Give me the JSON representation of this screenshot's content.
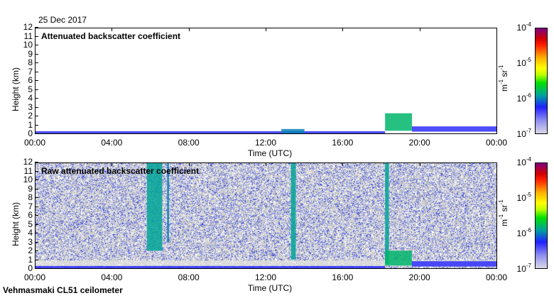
{
  "header": {
    "date": "25 Dec 2017"
  },
  "footer": {
    "instrument": "Vehmasmaki CL51 ceilometer"
  },
  "colors": {
    "noise_gray": "#c8c8c8",
    "speckle_blue": "#3040e0",
    "cloud_green": "#20c040"
  },
  "chart_data": [
    {
      "type": "heatmap",
      "title": "Attenuated backscatter coefficient",
      "xlabel": "Time (UTC)",
      "ylabel": "Height (km)",
      "xlim": [
        0,
        24
      ],
      "ylim": [
        0,
        12
      ],
      "xticks": [
        "00:00",
        "04:00",
        "08:00",
        "12:00",
        "16:00",
        "20:00",
        "00:00"
      ],
      "yticks": [
        "0",
        "1",
        "2",
        "3",
        "4",
        "5",
        "6",
        "7",
        "8",
        "9",
        "10",
        "11",
        "12"
      ],
      "colorbar": {
        "label_base": "m",
        "label_exp1": "-1",
        "label_mid": " sr",
        "label_exp2": "-1",
        "ticks": [
          "-7",
          "-6",
          "-5",
          "-4"
        ],
        "tick_base": "10",
        "scale": "log"
      },
      "noise_background": false,
      "features": [
        {
          "name": "surface-layer",
          "t0": 0,
          "t1": 18.2,
          "h0": 0,
          "h1": 0.25,
          "log10": -6.3
        },
        {
          "name": "aerosol-near-13h",
          "t0": 12.8,
          "t1": 14.0,
          "h0": 0,
          "h1": 0.5,
          "log10": -6.0
        },
        {
          "name": "low-cloud",
          "t0": 18.2,
          "t1": 19.6,
          "h0": 0.3,
          "h1": 2.3,
          "log10": -5.8
        },
        {
          "name": "boundary-layer-late",
          "t0": 19.6,
          "t1": 24,
          "h0": 0.2,
          "h1": 0.8,
          "log10": -6.3
        }
      ]
    },
    {
      "type": "heatmap",
      "title": "Raw attenuated backscatter coefficient",
      "xlabel": "Time (UTC)",
      "ylabel": "Height (km)",
      "xlim": [
        0,
        24
      ],
      "ylim": [
        0,
        12
      ],
      "xticks": [
        "00:00",
        "04:00",
        "08:00",
        "12:00",
        "16:00",
        "20:00",
        "00:00"
      ],
      "yticks": [
        "0",
        "1",
        "2",
        "3",
        "4",
        "5",
        "6",
        "7",
        "8",
        "9",
        "10",
        "11",
        "12"
      ],
      "colorbar": {
        "label_base": "m",
        "label_exp1": "-1",
        "label_mid": " sr",
        "label_exp2": "-1",
        "ticks": [
          "-7",
          "-6",
          "-5",
          "-4"
        ],
        "tick_base": "10",
        "scale": "log"
      },
      "noise_background": true,
      "features": [
        {
          "name": "surface-layer",
          "t0": 0,
          "t1": 18.2,
          "h0": 0,
          "h1": 0.25,
          "log10": -6.3
        },
        {
          "name": "cloud-column-6h",
          "t0": 5.8,
          "t1": 6.6,
          "h0": 2.0,
          "h1": 12,
          "log10": -5.9
        },
        {
          "name": "cloud-column-6h-narrow",
          "t0": 6.85,
          "t1": 6.95,
          "h0": 3.0,
          "h1": 12,
          "log10": -6.0
        },
        {
          "name": "cloud-column-13h",
          "t0": 13.3,
          "t1": 13.55,
          "h0": 1.0,
          "h1": 12,
          "log10": -5.9
        },
        {
          "name": "cloud-column-18h",
          "t0": 18.2,
          "t1": 18.4,
          "h0": 0.5,
          "h1": 12,
          "log10": -5.9
        },
        {
          "name": "low-cloud",
          "t0": 18.2,
          "t1": 19.6,
          "h0": 0.3,
          "h1": 2.0,
          "log10": -5.8
        },
        {
          "name": "boundary-layer-late",
          "t0": 19.6,
          "t1": 24,
          "h0": 0.2,
          "h1": 0.8,
          "log10": -6.3
        }
      ]
    }
  ]
}
